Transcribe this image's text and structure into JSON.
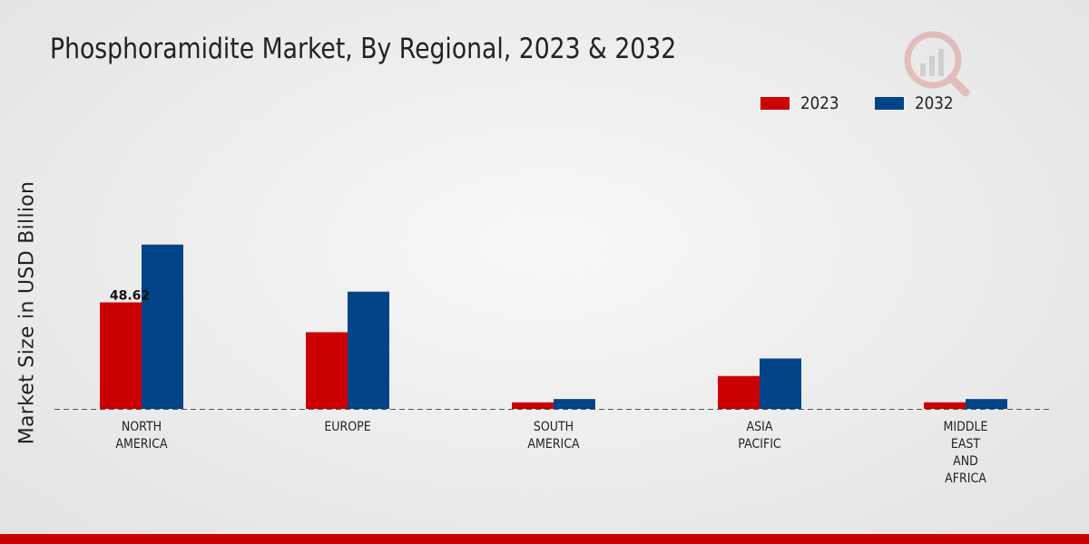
{
  "chart_data": {
    "type": "bar",
    "title": "Phosphoramidite Market, By Regional, 2023 & 2032",
    "xlabel": "",
    "ylabel": "Market Size in USD Billion",
    "categories": [
      [
        "NORTH",
        "AMERICA"
      ],
      [
        "EUROPE"
      ],
      [
        "SOUTH",
        "AMERICA"
      ],
      [
        "ASIA",
        "PACIFIC"
      ],
      [
        "MIDDLE",
        "EAST",
        "AND",
        "AFRICA"
      ]
    ],
    "series": [
      {
        "name": "2023",
        "color": "#cc0000",
        "values": [
          48.62,
          35.0,
          3.0,
          15.0,
          3.0
        ]
      },
      {
        "name": "2032",
        "color": "#004488",
        "values": [
          75.0,
          53.5,
          4.5,
          23.0,
          4.5
        ]
      }
    ],
    "data_labels": [
      {
        "series": 0,
        "category": 0,
        "text": "48.62"
      }
    ],
    "ylim": [
      0,
      120
    ],
    "legend": "top-right",
    "grid": false
  }
}
